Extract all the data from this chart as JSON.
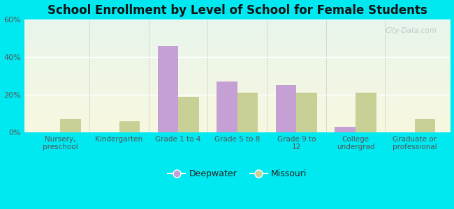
{
  "title": "School Enrollment by Level of School for Female Students",
  "categories": [
    "Nursery,\npreschool",
    "Kindergarten",
    "Grade 1 to 4",
    "Grade 5 to 8",
    "Grade 9 to\n12",
    "College\nundergrad",
    "Graduate or\nprofessional"
  ],
  "deepwater": [
    0,
    0,
    46,
    27,
    25,
    3,
    0
  ],
  "missouri": [
    7,
    6,
    19,
    21,
    21,
    21,
    7
  ],
  "deepwater_color": "#c4a0d4",
  "missouri_color": "#c8d096",
  "background_color": "#00e8f0",
  "grad_top": "#e8f5ec",
  "grad_bottom": "#f8f8e0",
  "ylim": [
    0,
    60
  ],
  "yticks": [
    0,
    20,
    40,
    60
  ],
  "ytick_labels": [
    "0%",
    "20%",
    "40%",
    "60%"
  ],
  "legend_labels": [
    "Deepwater",
    "Missouri"
  ],
  "watermark": "City-Data.com",
  "bar_width": 0.35,
  "n_categories": 7
}
